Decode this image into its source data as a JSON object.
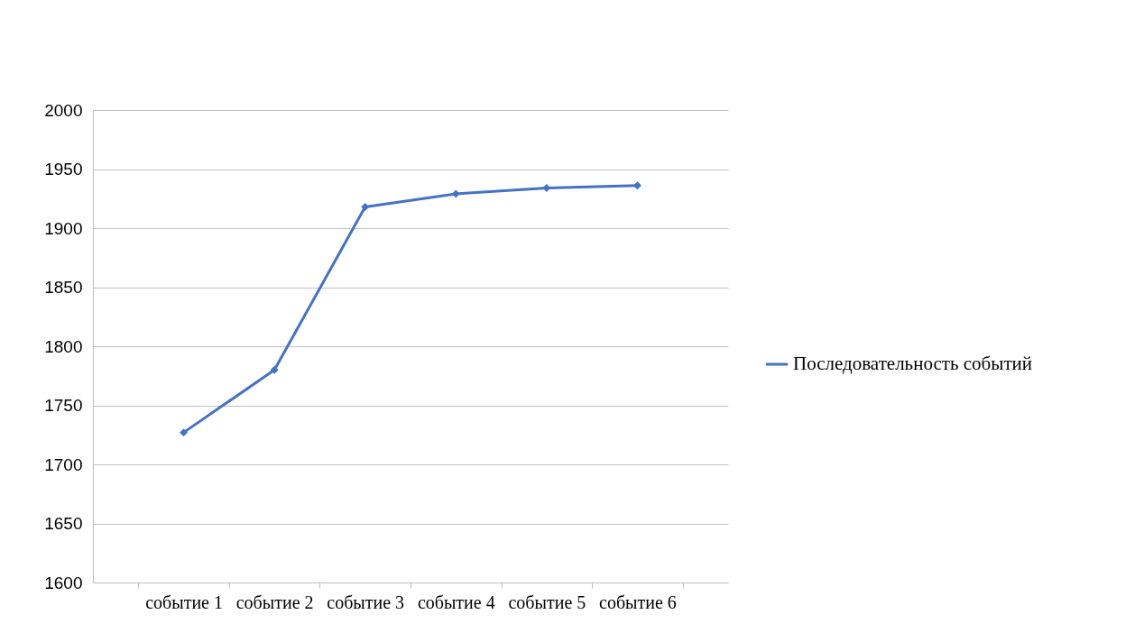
{
  "chart_data": {
    "type": "line",
    "categories": [
      "событие 1",
      "событие 2",
      "событие 3",
      "событие 4",
      "событие 5",
      "событие 6"
    ],
    "series": [
      {
        "name": "Последовательность событий",
        "color": "#4472c4",
        "values": [
          1727,
          1780,
          1918,
          1929,
          1934,
          1936
        ]
      }
    ],
    "ylim": [
      1600,
      2000
    ],
    "yticks": [
      1600,
      1650,
      1700,
      1750,
      1800,
      1850,
      1900,
      1950,
      2000
    ],
    "grid": "y",
    "legend": "right",
    "marker": "diamond",
    "line_style": "solid"
  }
}
